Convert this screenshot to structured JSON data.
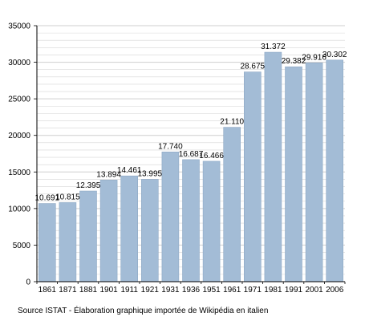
{
  "chart_data": {
    "type": "bar",
    "categories": [
      "1861",
      "1871",
      "1881",
      "1901",
      "1911",
      "1921",
      "1931",
      "1936",
      "1951",
      "1961",
      "1971",
      "1981",
      "1991",
      "2001",
      "2006"
    ],
    "values": [
      10691,
      10815,
      12395,
      13894,
      14461,
      13995,
      17740,
      16687,
      16466,
      21110,
      28675,
      31372,
      29382,
      29916,
      30302
    ],
    "value_labels": [
      "10.691",
      "10.815",
      "12.395",
      "13.894",
      "14.461",
      "13.995",
      "17.740",
      "16.687",
      "16.466",
      "21.110",
      "28.675",
      "31.372",
      "29.382",
      "29.916",
      "30.302"
    ],
    "y_ticks": [
      0,
      5000,
      10000,
      15000,
      20000,
      25000,
      30000,
      35000
    ],
    "ylim": [
      0,
      35000
    ],
    "title": "",
    "xlabel": "",
    "ylabel": "",
    "grid": true,
    "bar_color": "#a3bcd6",
    "bar_edge_color": "#8ea8c4",
    "grid_color": "#d6d6d6"
  },
  "source_note": "Source ISTAT - Élaboration graphique importée de Wikipédia en italien"
}
